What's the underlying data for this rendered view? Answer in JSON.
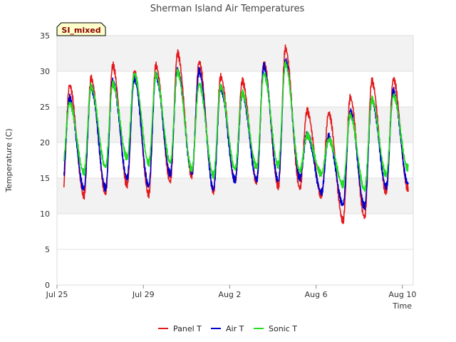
{
  "chart_data": {
    "type": "line",
    "title": "Sherman Island Air Temperatures",
    "xlabel": "Time",
    "ylabel": "Temperature (C)",
    "badge": "SI_mixed",
    "ylim": [
      0,
      35
    ],
    "xlim": [
      0,
      16.5
    ],
    "yticks": [
      0,
      5,
      10,
      15,
      20,
      25,
      30,
      35
    ],
    "xticks": [
      {
        "value": 0,
        "label": "Jul 25"
      },
      {
        "value": 4,
        "label": "Jul 29"
      },
      {
        "value": 8,
        "label": "Aug 2"
      },
      {
        "value": 12,
        "label": "Aug 6"
      },
      {
        "value": 16,
        "label": "Aug 10"
      }
    ],
    "bands": [
      [
        10,
        15
      ],
      [
        20,
        25
      ],
      [
        30,
        35
      ]
    ],
    "grid": true,
    "legend_position": "bottom",
    "x_units": "days since Jul 25",
    "series": [
      {
        "name": "Panel T",
        "color": "#e31a1c",
        "daily_min": [
          12.0,
          12.5,
          12.8,
          14.0,
          12.7,
          14.5,
          15.3,
          13.2,
          14.5,
          14.5,
          13.8,
          13.6,
          12.5,
          9.0,
          9.5,
          13.0,
          13.5
        ],
        "daily_max": [
          28.0,
          29.0,
          30.8,
          30.0,
          30.8,
          32.5,
          31.3,
          29.2,
          28.6,
          31.2,
          33.2,
          24.4,
          24.1,
          26.3,
          28.6,
          28.9,
          30.6
        ]
      },
      {
        "name": "Air T",
        "color": "#0000cc",
        "daily_min": [
          14.0,
          13.5,
          13.6,
          15.0,
          13.9,
          15.6,
          15.8,
          13.4,
          14.7,
          14.8,
          14.6,
          15.0,
          13.0,
          11.3,
          11.0,
          13.8,
          14.3
        ],
        "daily_max": [
          26.2,
          27.7,
          28.7,
          29.0,
          29.4,
          30.2,
          30.0,
          27.6,
          26.8,
          30.7,
          31.4,
          21.2,
          20.8,
          24.3,
          26.0,
          27.2,
          29.2
        ]
      },
      {
        "name": "Sonic T",
        "color": "#22dd22",
        "daily_min": [
          16.5,
          15.8,
          16.6,
          17.9,
          17.1,
          17.2,
          16.2,
          15.4,
          16.3,
          16.6,
          16.8,
          16.0,
          15.6,
          14.1,
          13.4,
          15.5,
          16.4
        ],
        "daily_max": [
          25.5,
          27.8,
          28.2,
          29.6,
          29.5,
          29.9,
          28.2,
          27.8,
          26.9,
          29.6,
          31.0,
          21.0,
          20.4,
          23.8,
          26.0,
          26.6,
          28.8
        ]
      }
    ],
    "end_values": [
      15.6,
      16.5,
      18.0
    ]
  }
}
